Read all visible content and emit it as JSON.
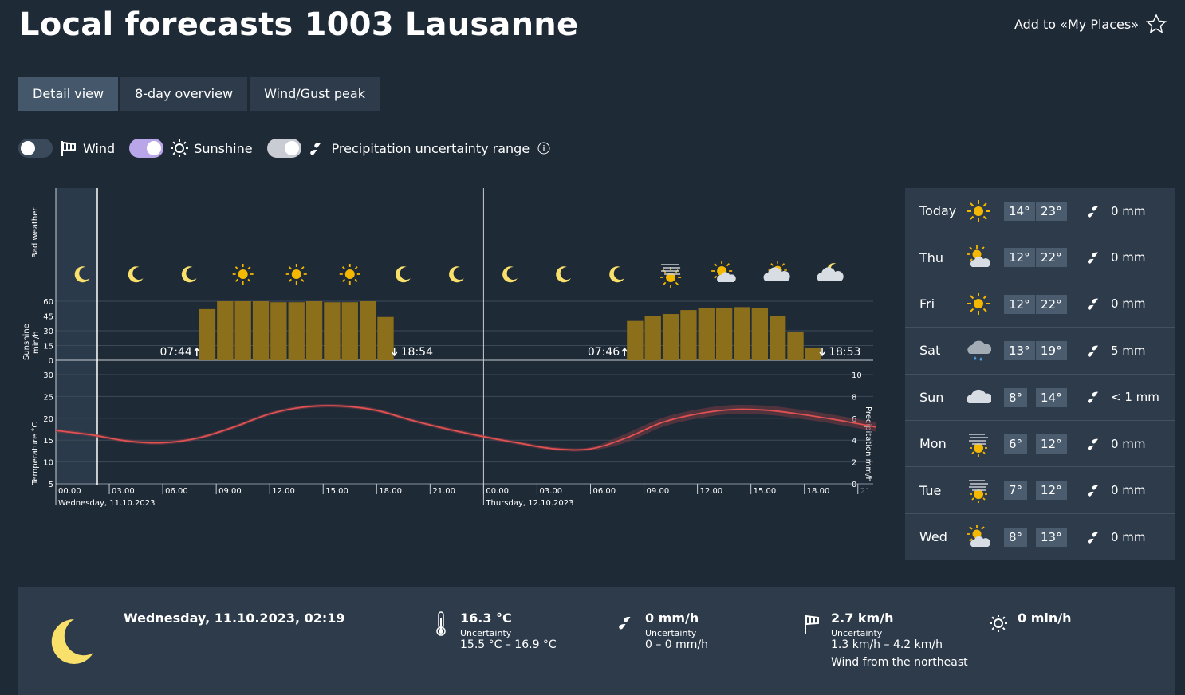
{
  "header": {
    "title": "Local forecasts 1003 Lausanne",
    "add_places": "Add to «My Places»"
  },
  "tabs": [
    {
      "label": "Detail view"
    },
    {
      "label": "8-day overview"
    },
    {
      "label": "Wind/Gust peak"
    }
  ],
  "toggles": {
    "wind": "Wind",
    "sunshine": "Sunshine",
    "precip": "Precipitation uncertainty range"
  },
  "chart": {
    "bad_weather_label": "Bad weather",
    "sunshine_axis_label": "Sunshine min/h",
    "temp_axis_label": "Temperature °C",
    "precip_axis_label": "Precipitation mm/h",
    "sunshine_ticks": [
      "60",
      "45",
      "30",
      "15",
      "0"
    ],
    "temp_ticks": [
      "30",
      "25",
      "20",
      "15",
      "10",
      "5"
    ],
    "precip_ticks": [
      "10",
      "8",
      "6",
      "4",
      "2",
      "0"
    ],
    "time_ticks_day1": [
      "00.00",
      "03.00",
      "06.00",
      "09.00",
      "12.00",
      "15.00",
      "18.00",
      "21.00"
    ],
    "time_ticks_day2": [
      "00.00",
      "03.00",
      "06.00",
      "09.00",
      "12.00",
      "15.00",
      "18.00",
      "21."
    ],
    "day1_label": "Wednesday, 11.10.2023",
    "day2_label": "Thursday, 12.10.2023",
    "sunrise1": "07:44",
    "sunset1": "18:54",
    "sunrise2": "07:46",
    "sunset2": "18:53"
  },
  "chart_data": {
    "type": "bar",
    "sunshine_hours": [
      8,
      9,
      10,
      11,
      12,
      13,
      14,
      15,
      16,
      17,
      18,
      32,
      33,
      34,
      35,
      36,
      37,
      38,
      39,
      40,
      41,
      42
    ],
    "sunshine_values": [
      52,
      60,
      60,
      60,
      59,
      59,
      60,
      59,
      59,
      60,
      44,
      40,
      45,
      47,
      51,
      53,
      53,
      54,
      53,
      45,
      29,
      13
    ],
    "temperature_hours": [
      0,
      2,
      4,
      6,
      8,
      10,
      12,
      14,
      16,
      18,
      20,
      22,
      24,
      26,
      28,
      30,
      32,
      34,
      36,
      38,
      40,
      42,
      44,
      46
    ],
    "temperature_values": [
      17.2,
      16.2,
      14.8,
      14.4,
      15.5,
      18.0,
      21.0,
      22.6,
      22.8,
      21.8,
      19.5,
      17.5,
      15.8,
      14.3,
      13.0,
      13.0,
      15.5,
      19.0,
      21.0,
      22.0,
      21.8,
      20.8,
      19.5,
      18.0
    ],
    "temperature_band": 0.8,
    "sun_ylim": [
      0,
      60
    ],
    "temp_ylim": [
      5,
      30
    ],
    "precip_ylim": [
      0,
      10
    ],
    "night_icons": [
      "moon",
      "moon",
      "moon",
      "sun",
      "sun",
      "sun",
      "moon",
      "moon",
      "moon",
      "moon",
      "moon",
      "fog-sun",
      "sun-cloud",
      "cloud-sun",
      "cloud-moon"
    ]
  },
  "week": [
    {
      "day": "Today",
      "icon": "sun",
      "tmin": "14°",
      "tmax": "23°",
      "rain": "0 mm"
    },
    {
      "day": "Thu",
      "icon": "sun-cloud",
      "tmin": "12°",
      "tmax": "22°",
      "rain": "0 mm"
    },
    {
      "day": "Fri",
      "icon": "sun",
      "tmin": "12°",
      "tmax": "22°",
      "rain": "0 mm"
    },
    {
      "day": "Sat",
      "icon": "rain-cloud",
      "tmin": "13°",
      "tmax": "19°",
      "rain": "5 mm"
    },
    {
      "day": "Sun",
      "icon": "cloud",
      "tmin": "8°",
      "tmax": "14°",
      "rain": "< 1 mm"
    },
    {
      "day": "Mon",
      "icon": "fog-sun",
      "tmin": "6°",
      "tmax": "12°",
      "rain": "0 mm"
    },
    {
      "day": "Tue",
      "icon": "fog-sun",
      "tmin": "7°",
      "tmax": "12°",
      "rain": "0 mm"
    },
    {
      "day": "Wed",
      "icon": "sun-cloud",
      "tmin": "8°",
      "tmax": "13°",
      "rain": "0 mm"
    }
  ],
  "detail": {
    "datetime": "Wednesday, 11.10.2023, 02:19",
    "temp": "16.3 °C",
    "temp_unc_label": "Uncertainty",
    "temp_range": "15.5 °C – 16.9 °C",
    "precip": "0 mm/h",
    "precip_unc_label": "Uncertainty",
    "precip_range": "0 – 0 mm/h",
    "wind": "2.7 km/h",
    "wind_unc_label": "Uncertainty",
    "wind_range": "1.3 km/h – 4.2 km/h",
    "wind_dir": "Wind from the northeast",
    "sun": "0 min/h"
  },
  "colors": {
    "background": "#1f2a37",
    "panel": "#2d3b4b",
    "sun_bar": "#8c6f1a",
    "sun_icon": "#f5b800",
    "temp_line": "#e05252",
    "moon": "#f9e06b"
  }
}
